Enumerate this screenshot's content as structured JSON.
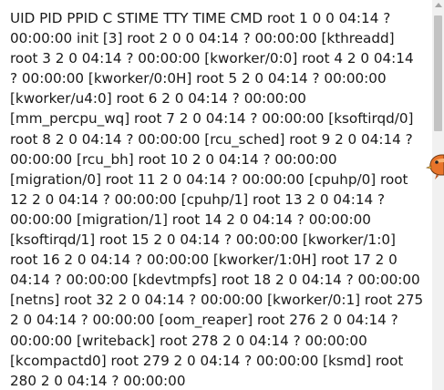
{
  "process_listing": {
    "text": "UID PID PPID C STIME TTY TIME CMD root 1 0 0 04:14 ? 00:00:00 init [3] root 2 0 0 04:14 ? 00:00:00 [kthreadd] root 3 2 0 04:14 ? 00:00:00 [kworker/0:0] root 4 2 0 04:14 ? 00:00:00 [kworker/0:0H] root 5 2 0 04:14 ? 00:00:00 [kworker/u4:0] root 6 2 0 04:14 ? 00:00:00 [mm_percpu_wq] root 7 2 0 04:14 ? 00:00:00 [ksoftirqd/0] root 8 2 0 04:14 ? 00:00:00 [rcu_sched] root 9 2 0 04:14 ? 00:00:00 [rcu_bh] root 10 2 0 04:14 ? 00:00:00 [migration/0] root 11 2 0 04:14 ? 00:00:00 [cpuhp/0] root 12 2 0 04:14 ? 00:00:00 [cpuhp/1] root 13 2 0 04:14 ? 00:00:00 [migration/1] root 14 2 0 04:14 ? 00:00:00 [ksoftirqd/1] root 15 2 0 04:14 ? 00:00:00 [kworker/1:0] root 16 2 0 04:14 ? 00:00:00 [kworker/1:0H] root 17 2 0 04:14 ? 00:00:00 [kdevtmpfs] root 18 2 0 04:14 ? 00:00:00 [netns] root 32 2 0 04:14 ? 00:00:00 [kworker/0:1] root 275 2 0 04:14 ? 00:00:00 [oom_reaper] root 276 2 0 04:14 ? 00:00:00 [writeback] root 278 2 0 04:14 ? 00:00:00 [kcompactd0] root 279 2 0 04:14 ? 00:00:00 [ksmd] root 280 2 0 04:14 ? 00:00:00"
  },
  "icons": {
    "overlay_widget": "orange-bird-icon",
    "scroll_up": "scroll-up-arrow-icon"
  },
  "colors": {
    "text": "#1a1a1a",
    "background": "#ffffff",
    "scrollbar_track": "#f1f1f1",
    "scrollbar_thumb": "#c3c3c3",
    "overlay_accent": "#e8742a"
  }
}
